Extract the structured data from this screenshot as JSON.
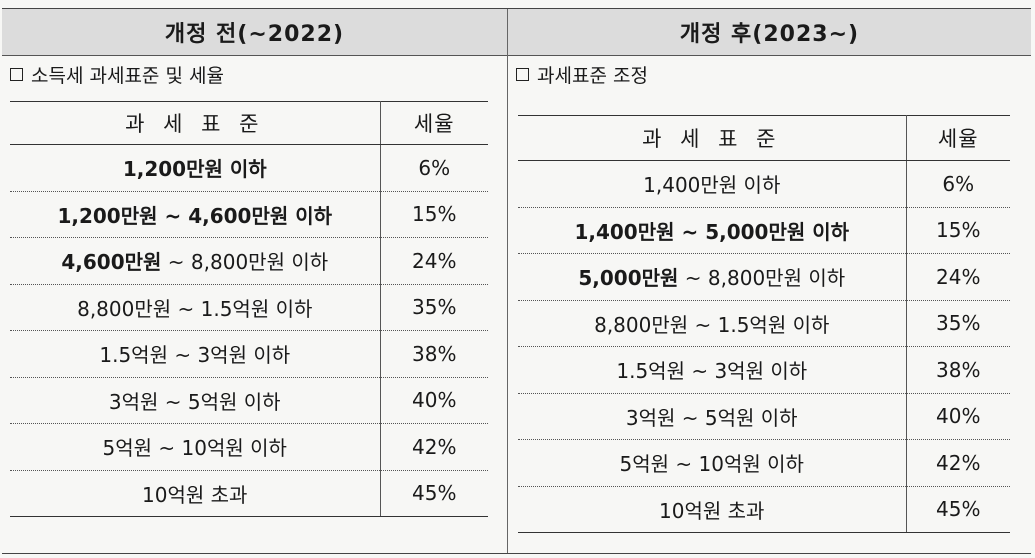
{
  "before": {
    "header": "개정 전(~2022)",
    "section_title": "소득세 과세표준 및 세율",
    "col_base": "과 세 표 준",
    "col_rate": "세율",
    "rows": [
      {
        "base_bold": "1,200만원 이하",
        "base_rest": "",
        "rate": "6%"
      },
      {
        "base_bold": "1,200만원 ~ 4,600만원 이하",
        "base_rest": "",
        "rate": "15%"
      },
      {
        "base_bold": "4,600만원",
        "base_rest": " ~ 8,800만원 이하",
        "rate": "24%"
      },
      {
        "base_bold": "",
        "base_rest": "8,800만원 ~ 1.5억원 이하",
        "rate": "35%"
      },
      {
        "base_bold": "",
        "base_rest": "1.5억원 ~ 3억원 이하",
        "rate": "38%"
      },
      {
        "base_bold": "",
        "base_rest": "3억원 ~ 5억원 이하",
        "rate": "40%"
      },
      {
        "base_bold": "",
        "base_rest": "5억원 ~ 10억원 이하",
        "rate": "42%"
      },
      {
        "base_bold": "",
        "base_rest": "10억원 초과",
        "rate": "45%"
      }
    ]
  },
  "after": {
    "header": "개정 후(2023~)",
    "section_title": "과세표준 조정",
    "col_base": "과 세 표 준",
    "col_rate": "세율",
    "rows": [
      {
        "base_bold": "",
        "base_rest": "1,400만원 이하",
        "rate": "6%"
      },
      {
        "base_bold": "1,400만원 ~ 5,000만원 이하",
        "base_rest": "",
        "rate": "15%"
      },
      {
        "base_bold": "5,000만원",
        "base_rest": " ~ 8,800만원 이하",
        "rate": "24%"
      },
      {
        "base_bold": "",
        "base_rest": "8,800만원 ~ 1.5억원 이하",
        "rate": "35%"
      },
      {
        "base_bold": "",
        "base_rest": "1.5억원 ~ 3억원 이하",
        "rate": "38%"
      },
      {
        "base_bold": "",
        "base_rest": "3억원 ~ 5억원 이하",
        "rate": "40%"
      },
      {
        "base_bold": "",
        "base_rest": "5억원 ~ 10억원 이하",
        "rate": "42%"
      },
      {
        "base_bold": "",
        "base_rest": "10억원 초과",
        "rate": "45%"
      }
    ]
  }
}
